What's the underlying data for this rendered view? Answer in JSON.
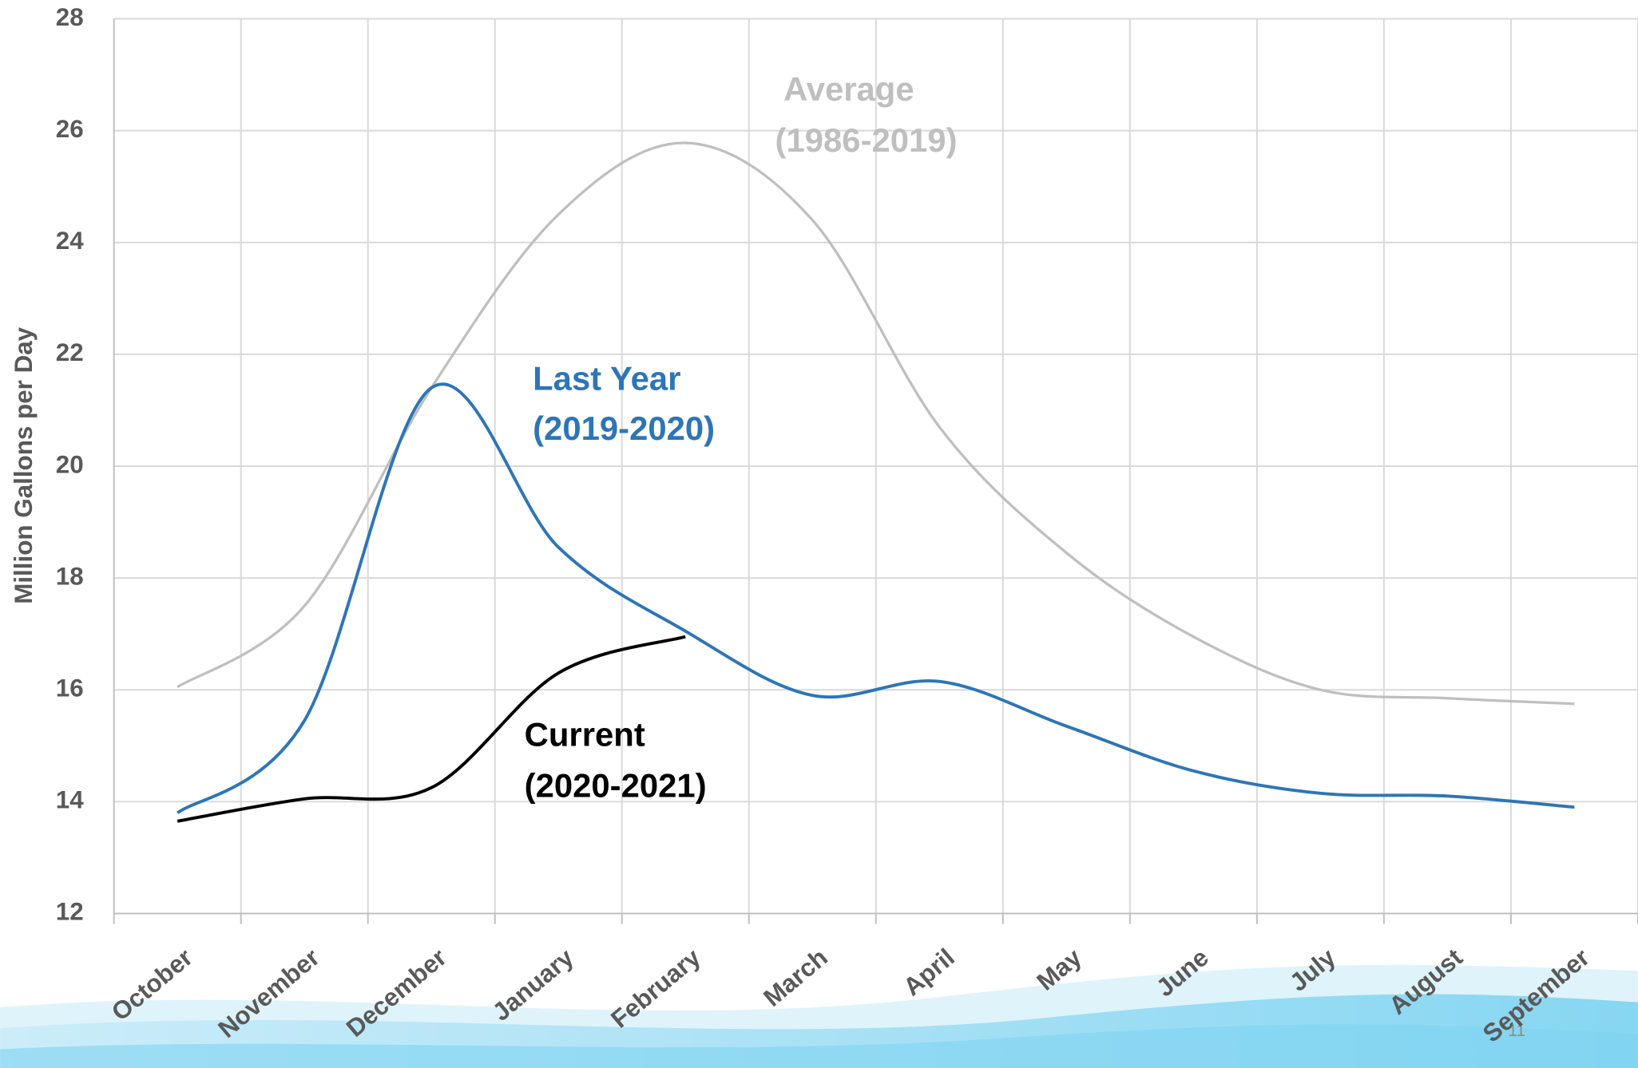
{
  "chart_data": {
    "type": "line",
    "y_label": "Million Gallons per Day",
    "categories": [
      "October",
      "November",
      "December",
      "January",
      "February",
      "March",
      "April",
      "May",
      "June",
      "July",
      "August",
      "September"
    ],
    "series": [
      {
        "name": "Average",
        "period": "(1986-2019)",
        "color": "#bfbfbf",
        "values": [
          16.05,
          17.5,
          21.4,
          24.5,
          25.78,
          24.4,
          20.7,
          18.45,
          16.95,
          16.0,
          15.85,
          15.75
        ]
      },
      {
        "name": "Last Year",
        "period": "(2019-2020)",
        "color": "#2e75b6",
        "values": [
          13.8,
          15.45,
          21.4,
          18.55,
          17.05,
          15.9,
          16.15,
          15.35,
          14.55,
          14.15,
          14.1,
          13.9
        ]
      },
      {
        "name": "Current",
        "period": "(2020-2021)",
        "color": "#000000",
        "values": [
          13.65,
          14.05,
          14.25,
          16.3,
          16.95,
          null,
          null,
          null,
          null,
          null,
          null,
          null
        ]
      }
    ],
    "ylim": [
      12,
      28
    ],
    "yticks": [
      12,
      14,
      16,
      18,
      20,
      22,
      24,
      26,
      28
    ],
    "grid": true,
    "page_number": "11"
  }
}
